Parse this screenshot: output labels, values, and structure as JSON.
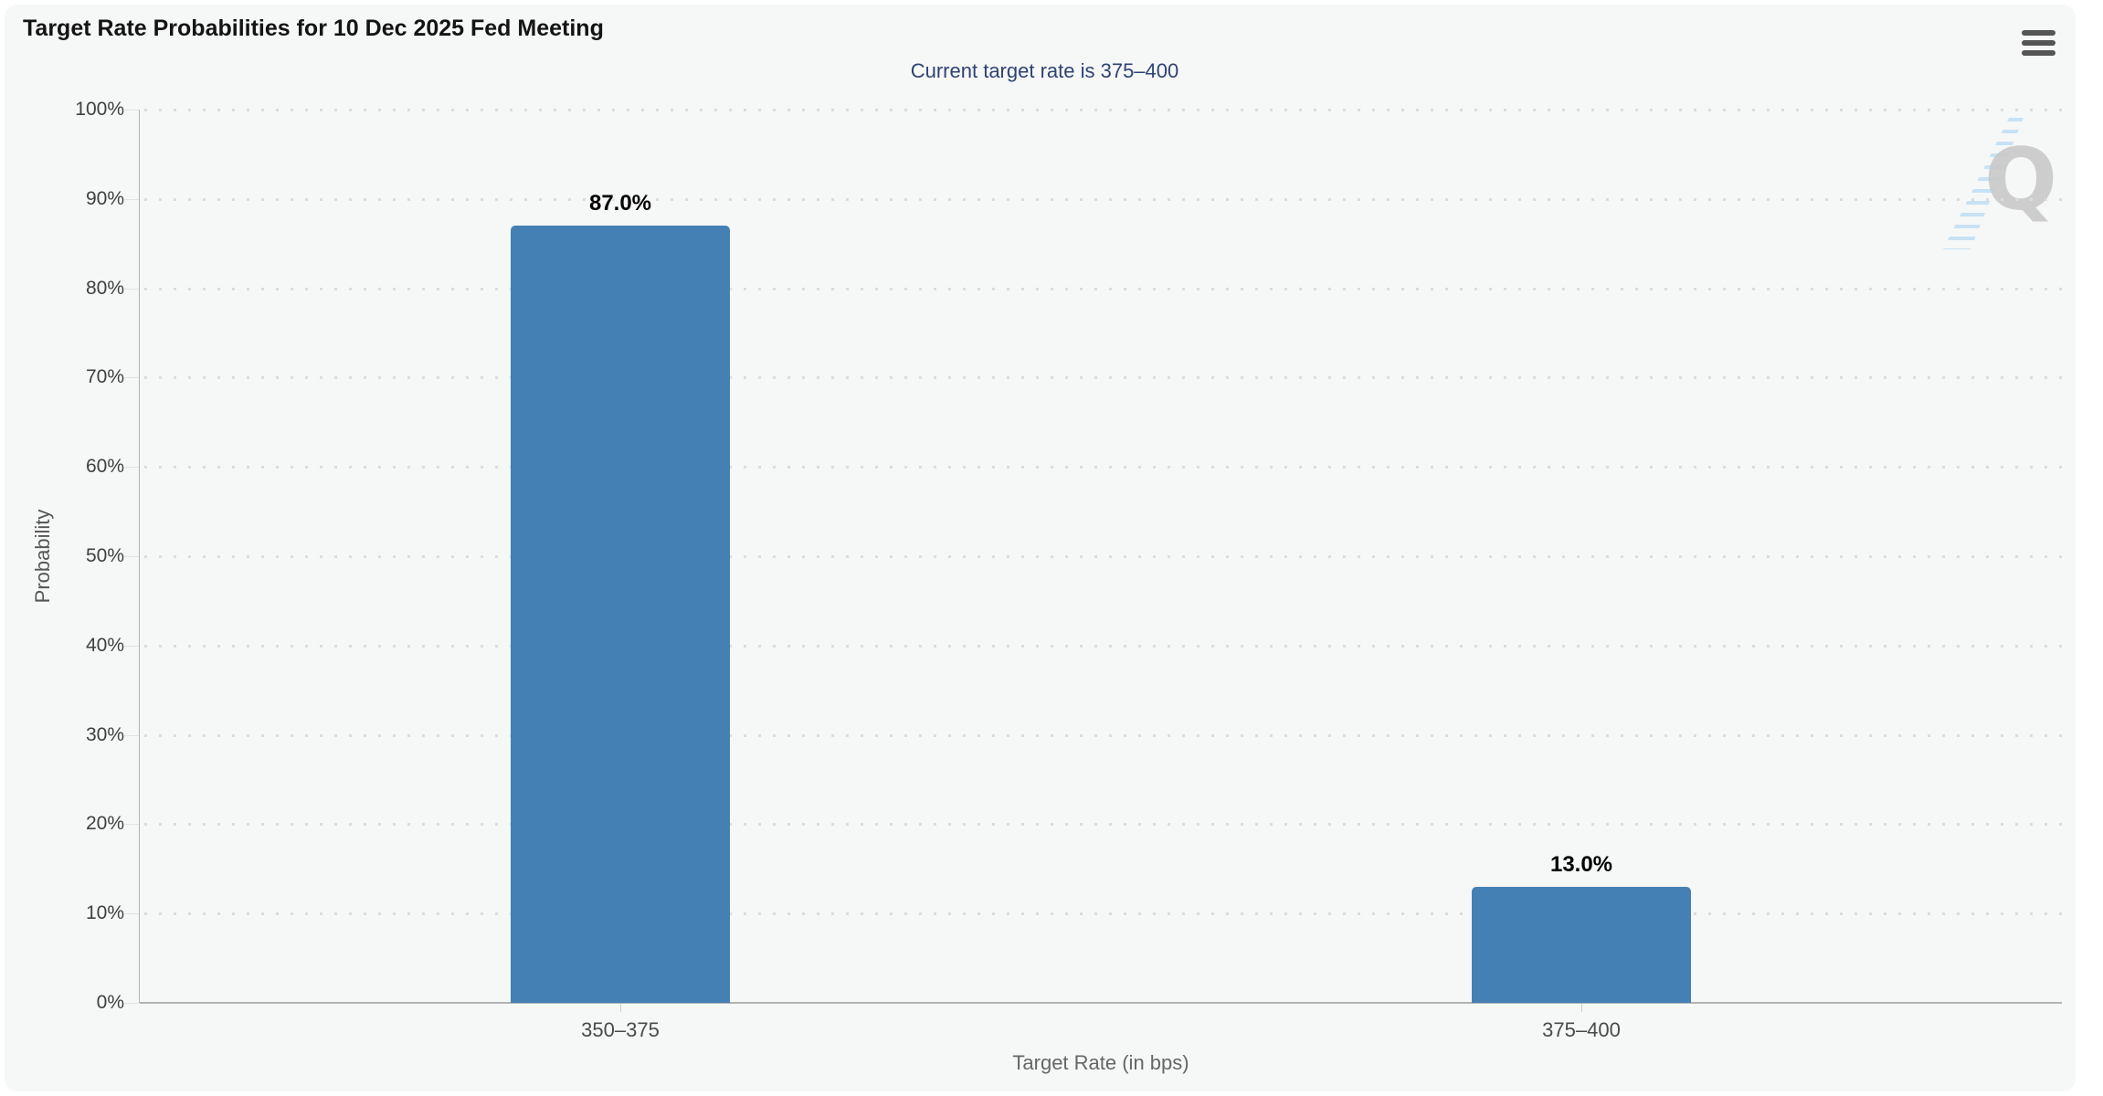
{
  "card": {
    "background": "#f6f7f7",
    "page_background": "#ffffff"
  },
  "icons": {
    "menu": "hamburger-menu-icon",
    "watermark": "q-logo-watermark"
  },
  "watermark_letter": "Q",
  "chart_data": {
    "type": "bar",
    "title": "Target Rate Probabilities for 10 Dec 2025 Fed Meeting",
    "subtitle": "Current target rate is 375–400",
    "xlabel": "Target Rate (in bps)",
    "ylabel": "Probability",
    "categories": [
      "350–375",
      "375–400"
    ],
    "values": [
      87.0,
      13.0
    ],
    "data_labels": [
      "87.0%",
      "13.0%"
    ],
    "ylim": [
      0,
      100
    ],
    "ytick_step": 10,
    "ytick_labels": [
      "0%",
      "10%",
      "20%",
      "30%",
      "40%",
      "50%",
      "60%",
      "70%",
      "80%",
      "90%",
      "100%"
    ],
    "grid": "horizontal-dotted",
    "legend": "none",
    "colors": {
      "bar": "#4580b5",
      "subtitle": "#2e4374",
      "axis_line": "#b3b3b3",
      "gridline": "#dcdcdc"
    }
  }
}
